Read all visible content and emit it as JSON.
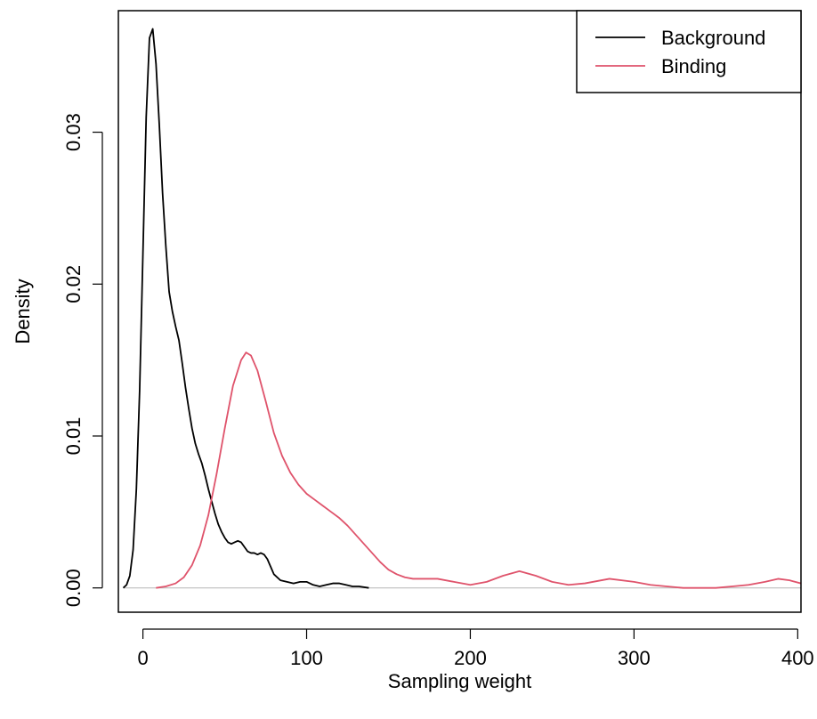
{
  "chart_data": {
    "type": "line",
    "title": "",
    "xlabel": "Sampling weight",
    "ylabel": "Density",
    "xlim": [
      -15,
      402
    ],
    "ylim": [
      -0.0016,
      0.038
    ],
    "x_ticks": [
      0,
      100,
      200,
      300,
      400
    ],
    "x_tick_labels": [
      "0",
      "100",
      "200",
      "300",
      "400"
    ],
    "y_ticks": [
      0,
      0.01,
      0.02,
      0.03
    ],
    "y_tick_labels": [
      "0.00",
      "0.01",
      "0.02",
      "0.03"
    ],
    "grid": false,
    "baseline": {
      "y": 0,
      "color": "#bebebe"
    },
    "legend_position": "top-right",
    "series": [
      {
        "name": "Background",
        "color": "#000000",
        "x": [
          -12,
          -10,
          -8,
          -6,
          -4,
          -2,
          0,
          2,
          4,
          6,
          8,
          10,
          12,
          14,
          16,
          18,
          20,
          22,
          24,
          26,
          28,
          30,
          32,
          34,
          36,
          38,
          40,
          42,
          44,
          46,
          48,
          50,
          52,
          54,
          56,
          58,
          60,
          62,
          64,
          66,
          68,
          70,
          72,
          74,
          76,
          78,
          80,
          84,
          88,
          92,
          96,
          100,
          104,
          108,
          112,
          116,
          120,
          124,
          128,
          132,
          138
        ],
        "values": [
          0.0,
          0.0002,
          0.0008,
          0.0025,
          0.0065,
          0.013,
          0.022,
          0.031,
          0.0362,
          0.0368,
          0.0345,
          0.0305,
          0.026,
          0.0225,
          0.0195,
          0.0182,
          0.0172,
          0.0163,
          0.0148,
          0.0132,
          0.0118,
          0.0105,
          0.0095,
          0.0088,
          0.0082,
          0.0074,
          0.0065,
          0.0057,
          0.0049,
          0.0042,
          0.0037,
          0.0033,
          0.003,
          0.0029,
          0.003,
          0.0031,
          0.003,
          0.0027,
          0.0024,
          0.0023,
          0.0023,
          0.0022,
          0.0023,
          0.0022,
          0.0019,
          0.0014,
          0.0009,
          0.0005,
          0.0004,
          0.0003,
          0.0004,
          0.0004,
          0.0002,
          0.0001,
          0.0002,
          0.0003,
          0.0003,
          0.0002,
          0.0001,
          0.0001,
          0.0
        ]
      },
      {
        "name": "Binding",
        "color": "#df536b",
        "x": [
          8,
          14,
          20,
          25,
          30,
          35,
          40,
          45,
          50,
          55,
          60,
          63,
          66,
          70,
          75,
          80,
          85,
          90,
          95,
          100,
          105,
          110,
          115,
          120,
          125,
          130,
          135,
          140,
          145,
          150,
          155,
          160,
          165,
          170,
          180,
          190,
          200,
          210,
          220,
          230,
          240,
          250,
          260,
          270,
          285,
          300,
          310,
          320,
          330,
          340,
          350,
          360,
          370,
          380,
          388,
          395,
          402
        ],
        "values": [
          0.0,
          0.0001,
          0.0003,
          0.0007,
          0.0015,
          0.0028,
          0.0048,
          0.0075,
          0.0105,
          0.0133,
          0.015,
          0.0155,
          0.0153,
          0.0143,
          0.0123,
          0.0102,
          0.0087,
          0.0076,
          0.0068,
          0.0062,
          0.0058,
          0.0054,
          0.005,
          0.0046,
          0.0041,
          0.0035,
          0.0029,
          0.0023,
          0.0017,
          0.0012,
          0.0009,
          0.0007,
          0.0006,
          0.0006,
          0.0006,
          0.0004,
          0.0002,
          0.0004,
          0.0008,
          0.0011,
          0.0008,
          0.0004,
          0.0002,
          0.0003,
          0.0006,
          0.0004,
          0.0002,
          0.0001,
          0.0,
          0.0,
          0.0,
          0.0001,
          0.0002,
          0.0004,
          0.0006,
          0.0005,
          0.0003
        ]
      }
    ]
  }
}
